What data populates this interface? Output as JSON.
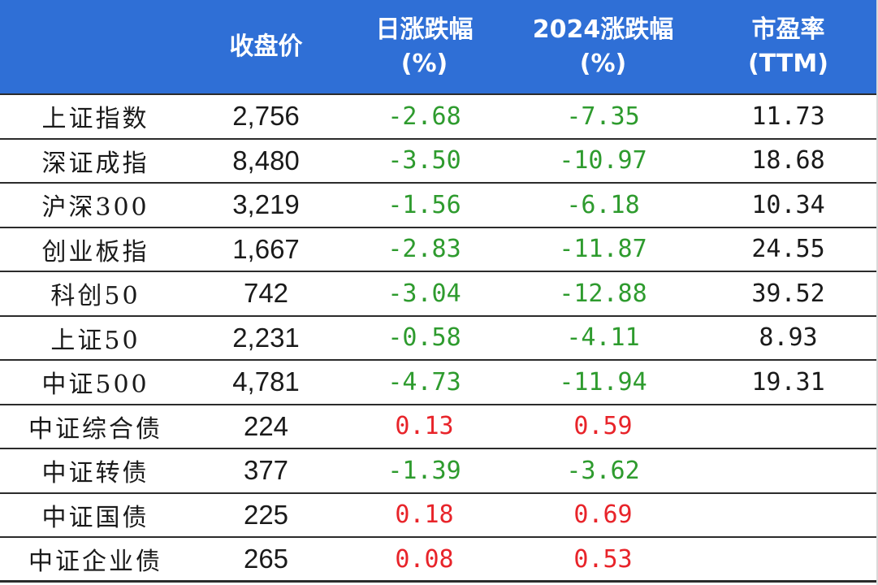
{
  "colors": {
    "header_bg": "#2f6fd6",
    "header_text": "#ffffff",
    "negative": "#2e9b2e",
    "positive": "#e8242a",
    "text": "#1a1a1a"
  },
  "header": {
    "col0": "",
    "col1": "收盘价",
    "col2_line1": "日涨跌幅",
    "col2_line2": "(%)",
    "col3_line1": "2024涨跌幅",
    "col3_line2": "(%)",
    "col4_line1": "市盈率",
    "col4_line2": "(TTM)"
  },
  "rows": [
    {
      "name": "上证指数",
      "close": "2,756",
      "daily": "-2.68",
      "daily_sign": "neg",
      "ytd": "-7.35",
      "ytd_sign": "neg",
      "pe": "11.73"
    },
    {
      "name": "深证成指",
      "close": "8,480",
      "daily": "-3.50",
      "daily_sign": "neg",
      "ytd": "-10.97",
      "ytd_sign": "neg",
      "pe": "18.68"
    },
    {
      "name": "沪深300",
      "close": "3,219",
      "daily": "-1.56",
      "daily_sign": "neg",
      "ytd": "-6.18",
      "ytd_sign": "neg",
      "pe": "10.34"
    },
    {
      "name": "创业板指",
      "close": "1,667",
      "daily": "-2.83",
      "daily_sign": "neg",
      "ytd": "-11.87",
      "ytd_sign": "neg",
      "pe": "24.55"
    },
    {
      "name": "科创50",
      "close": "742",
      "daily": "-3.04",
      "daily_sign": "neg",
      "ytd": "-12.88",
      "ytd_sign": "neg",
      "pe": "39.52"
    },
    {
      "name": "上证50",
      "close": "2,231",
      "daily": "-0.58",
      "daily_sign": "neg",
      "ytd": "-4.11",
      "ytd_sign": "neg",
      "pe": "8.93"
    },
    {
      "name": "中证500",
      "close": "4,781",
      "daily": "-4.73",
      "daily_sign": "neg",
      "ytd": "-11.94",
      "ytd_sign": "neg",
      "pe": "19.31"
    },
    {
      "name": "中证综合债",
      "close": "224",
      "daily": "0.13",
      "daily_sign": "pos",
      "ytd": "0.59",
      "ytd_sign": "pos",
      "pe": ""
    },
    {
      "name": "中证转债",
      "close": "377",
      "daily": "-1.39",
      "daily_sign": "neg",
      "ytd": "-3.62",
      "ytd_sign": "neg",
      "pe": ""
    },
    {
      "name": "中证国债",
      "close": "225",
      "daily": "0.18",
      "daily_sign": "pos",
      "ytd": "0.69",
      "ytd_sign": "pos",
      "pe": ""
    },
    {
      "name": "中证企业债",
      "close": "265",
      "daily": "0.08",
      "daily_sign": "pos",
      "ytd": "0.53",
      "ytd_sign": "pos",
      "pe": ""
    }
  ]
}
